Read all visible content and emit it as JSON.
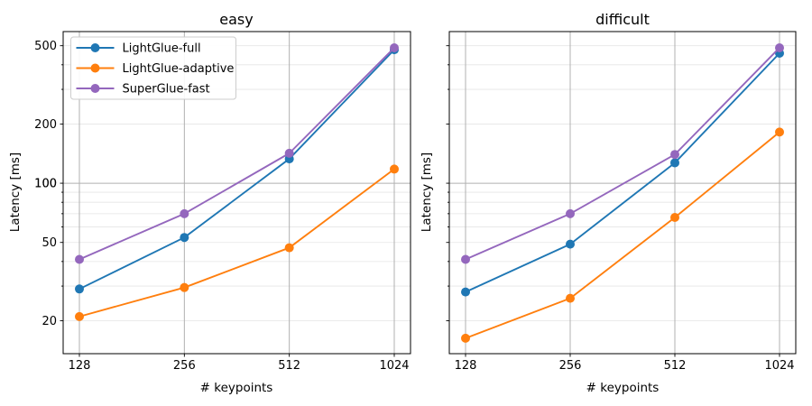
{
  "figure": {
    "background": "#ffffff",
    "text_color": "#000000"
  },
  "chart_data": {
    "type": "line",
    "xlabel": "# keypoints",
    "ylabel": "Latency [ms]",
    "x": [
      128,
      256,
      512,
      1024
    ],
    "xscale": "log2",
    "yscale": "log10",
    "ylim": [
      13.6,
      590
    ],
    "yticks_labeled": [
      20,
      50,
      100,
      200,
      500
    ],
    "yticks_minor": [
      20,
      30,
      40,
      50,
      60,
      70,
      80,
      90,
      200,
      300,
      400,
      500
    ],
    "ygrid_major": [
      100
    ],
    "grid": true,
    "legend_position": "upper left",
    "style": {
      "grid_major_color": "#b0b0b0",
      "grid_minor_color": "#e5e5e5",
      "spine_color": "#000000",
      "legend_border_color": "#cccccc",
      "legend_bg_color": "#ffffff",
      "marker": "circle",
      "marker_radius": 5,
      "line_width": 1.9
    },
    "panels": [
      {
        "title": "easy",
        "show_ytick_labels": true,
        "show_legend": true,
        "series": [
          {
            "name": "LightGlue-full",
            "color": "#1f77b4",
            "values": [
              29,
              53,
              133,
              477
            ]
          },
          {
            "name": "LightGlue-adaptive",
            "color": "#ff7f0e",
            "values": [
              21,
              29.5,
              47,
              118
            ]
          },
          {
            "name": "SuperGlue-fast",
            "color": "#9467bd",
            "values": [
              41,
              70,
              142,
              488
            ]
          }
        ]
      },
      {
        "title": "difficult",
        "show_ytick_labels": false,
        "show_legend": false,
        "series": [
          {
            "name": "LightGlue-full",
            "color": "#1f77b4",
            "values": [
              28,
              49,
              127,
              458
            ]
          },
          {
            "name": "LightGlue-adaptive",
            "color": "#ff7f0e",
            "values": [
              16.3,
              26,
              67,
              182
            ]
          },
          {
            "name": "SuperGlue-fast",
            "color": "#9467bd",
            "values": [
              41,
              70,
              140,
              488
            ]
          }
        ]
      }
    ]
  }
}
